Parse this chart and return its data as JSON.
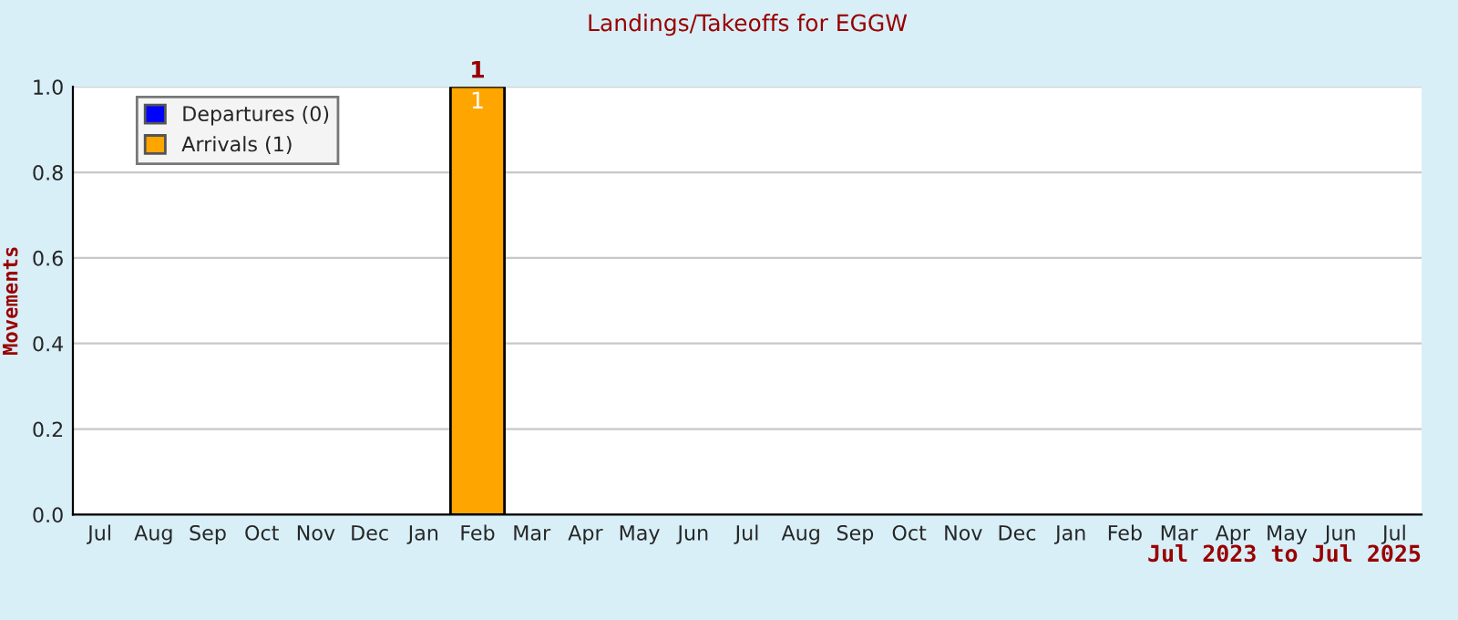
{
  "chart_data": {
    "type": "bar",
    "title": "Landings/Takeoffs for EGGW",
    "xlabel": "Jul 2023 to Jul 2025",
    "ylabel": "Movements",
    "categories": [
      "Jul",
      "Aug",
      "Sep",
      "Oct",
      "Nov",
      "Dec",
      "Jan",
      "Feb",
      "Mar",
      "Apr",
      "May",
      "Jun",
      "Jul",
      "Aug",
      "Sep",
      "Oct",
      "Nov",
      "Dec",
      "Jan",
      "Feb",
      "Mar",
      "Apr",
      "May",
      "Jun",
      "Jul"
    ],
    "stacked": true,
    "series": [
      {
        "name": "Departures (0)",
        "color": "#0000ff",
        "values": [
          0,
          0,
          0,
          0,
          0,
          0,
          0,
          0,
          0,
          0,
          0,
          0,
          0,
          0,
          0,
          0,
          0,
          0,
          0,
          0,
          0,
          0,
          0,
          0,
          0
        ]
      },
      {
        "name": "Arrivals (1)",
        "color": "#ffa500",
        "values": [
          0,
          0,
          0,
          0,
          0,
          0,
          0,
          1,
          0,
          0,
          0,
          0,
          0,
          0,
          0,
          0,
          0,
          0,
          0,
          0,
          0,
          0,
          0,
          0,
          0
        ],
        "value_labels": [
          null,
          null,
          null,
          null,
          null,
          null,
          null,
          "1",
          null,
          null,
          null,
          null,
          null,
          null,
          null,
          null,
          null,
          null,
          null,
          null,
          null,
          null,
          null,
          null,
          null
        ]
      }
    ],
    "totals": [
      null,
      null,
      null,
      null,
      null,
      null,
      null,
      "1",
      null,
      null,
      null,
      null,
      null,
      null,
      null,
      null,
      null,
      null,
      null,
      null,
      null,
      null,
      null,
      null,
      null
    ],
    "ylim": [
      0,
      1
    ],
    "yticks": [
      {
        "value": 0,
        "label": "0.0"
      },
      {
        "value": 0.2,
        "label": "0.2"
      },
      {
        "value": 0.4,
        "label": "0.4"
      },
      {
        "value": 0.6,
        "label": "0.6"
      },
      {
        "value": 0.8,
        "label": "0.8"
      },
      {
        "value": 1,
        "label": "1.0"
      }
    ],
    "grid": "y",
    "legend": "top left"
  }
}
